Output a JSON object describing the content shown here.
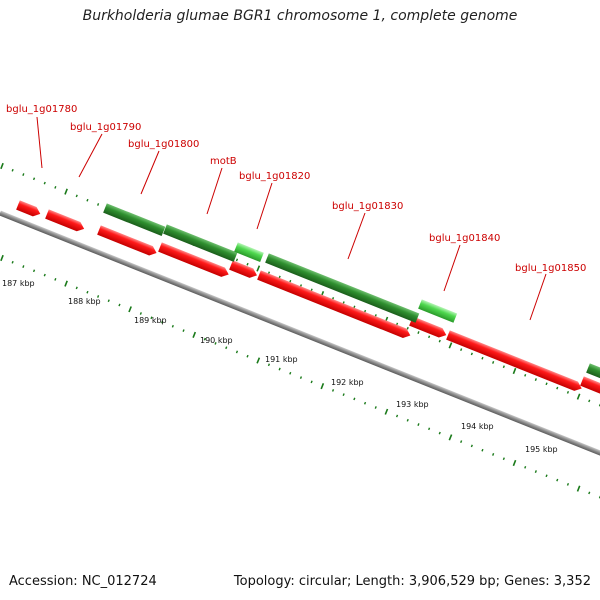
{
  "title": "Burkholderia glumae BGR1 chromosome 1, complete genome",
  "footer": {
    "accession": "Accession: NC_012724",
    "topology": "Topology: circular; Length: 3,906,529 bp; Genes: 3,352"
  },
  "colors": {
    "backbone": "#8a8a8a",
    "reverse_gene": "#ff0000",
    "forward_gene_dark": "#2a8a2a",
    "forward_gene_light": "#55dd55",
    "tick": "#1a7a1a",
    "label": "#cc0000"
  },
  "scale_labels": [
    "187 kbp",
    "188 kbp",
    "189 kbp",
    "190 kbp",
    "191 kbp",
    "192 kbp",
    "193 kbp",
    "194 kbp",
    "195 kbp"
  ],
  "gene_labels": [
    "bglu_1g01780",
    "bglu_1g01790",
    "bglu_1g01800",
    "motB",
    "bglu_1g01820",
    "bglu_1g01830",
    "bglu_1g01840",
    "bglu_1g01850"
  ]
}
